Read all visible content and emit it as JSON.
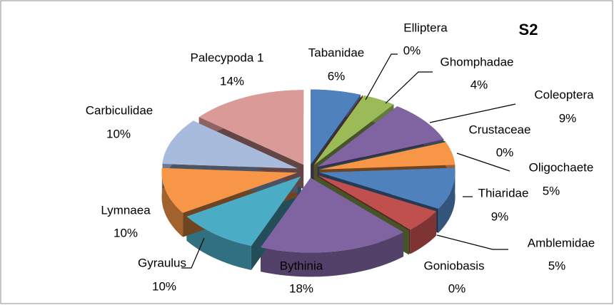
{
  "chart_data": {
    "type": "pie",
    "title": "S2",
    "categories": [
      "Tabanidae",
      "Elliptera",
      "Ghomphadae",
      "Coleoptera",
      "Crustaceae",
      "Oligochaete",
      "Thiaridae",
      "Amblemidae",
      "Goniobasis",
      "Bythinia",
      "Gyraulus",
      "Lymnaea",
      "Carbiculidae",
      "Palecypoda 1"
    ],
    "values": [
      6,
      0,
      4,
      9,
      0,
      5,
      9,
      5,
      0,
      18,
      10,
      10,
      10,
      14
    ],
    "value_labels": [
      "6%",
      "0%",
      "4%",
      "9%",
      "0%",
      "5%",
      "9%",
      "5%",
      "0%",
      "18%",
      "10%",
      "10%",
      "10%",
      "14%"
    ],
    "colors": [
      "#4f81bd",
      "#c0504d",
      "#9bbb59",
      "#8064a2",
      "#4bacc6",
      "#f79646",
      "#4f81bd",
      "#c0504d",
      "#9bbb59",
      "#8064a2",
      "#4bacc6",
      "#f79646",
      "#a9bbdd",
      "#d99a98"
    ]
  }
}
